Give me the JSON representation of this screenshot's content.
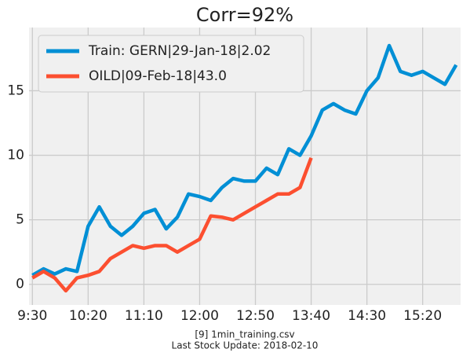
{
  "chart_data": {
    "type": "line",
    "title": "Corr=92%",
    "footnote": [
      "[9] 1min_training.csv",
      "Last Stock Update: 2018-02-10"
    ],
    "x": [
      0,
      10,
      20,
      30,
      40,
      50,
      60,
      70,
      80,
      90,
      100,
      110,
      120,
      130,
      140,
      150,
      160,
      170,
      180,
      190,
      200,
      210,
      220,
      230,
      240,
      250,
      260,
      270,
      280,
      290,
      300,
      310,
      320,
      330,
      340,
      350,
      360,
      370,
      380
    ],
    "series": [
      {
        "name": "Train: GERN|29-Jan-18|2.02",
        "color": "#008fd5",
        "values": [
          0.7,
          1.2,
          0.8,
          1.2,
          1.0,
          4.5,
          6.0,
          4.5,
          3.8,
          4.5,
          5.5,
          5.8,
          4.3,
          5.2,
          7.0,
          6.8,
          6.5,
          7.5,
          8.2,
          8.0,
          8.0,
          9.0,
          8.5,
          10.5,
          10.0,
          11.5,
          13.5,
          14.0,
          13.5,
          13.2,
          15.0,
          16.0,
          18.5,
          16.5,
          16.2,
          16.5,
          16.0,
          15.5,
          17.0
        ]
      },
      {
        "name": "OILD|09-Feb-18|43.0",
        "color": "#fc4f30",
        "values": [
          0.5,
          1.0,
          0.5,
          -0.5,
          0.5,
          0.7,
          1.0,
          2.0,
          2.5,
          3.0,
          2.8,
          3.0,
          3.0,
          2.5,
          3.0,
          3.5,
          5.3,
          5.2,
          5.0,
          5.5,
          6.0,
          6.5,
          7.0,
          7.0,
          7.5,
          9.8,
          null,
          null,
          null,
          null,
          null,
          null,
          null,
          null,
          null,
          null,
          null,
          null,
          null
        ]
      }
    ],
    "xlim": [
      -3,
      384
    ],
    "ylim": [
      -1.6,
      19.9
    ],
    "xticks": [
      {
        "value": 0,
        "label": "9:30"
      },
      {
        "value": 50,
        "label": "10:20"
      },
      {
        "value": 100,
        "label": "11:10"
      },
      {
        "value": 150,
        "label": "12:00"
      },
      {
        "value": 200,
        "label": "12:50"
      },
      {
        "value": 250,
        "label": "13:40"
      },
      {
        "value": 300,
        "label": "14:30"
      },
      {
        "value": 350,
        "label": "15:20"
      }
    ],
    "yticks": [
      0,
      5,
      10,
      15
    ],
    "grid": true,
    "legend": "upper left"
  }
}
